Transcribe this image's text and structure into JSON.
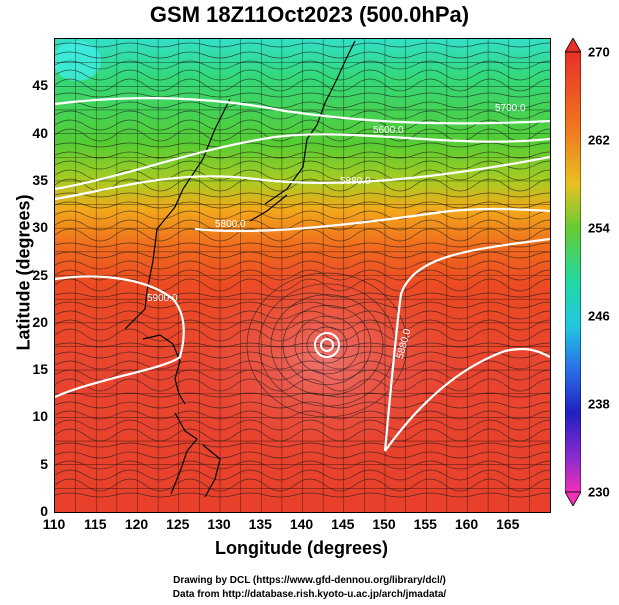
{
  "title": "GSM 18Z11Oct2023 (500.0hPa)",
  "xlabel": "Longitude (degrees)",
  "ylabel": "Latitude (degrees)",
  "x_ticks": [
    "110",
    "115",
    "120",
    "125",
    "130",
    "135",
    "140",
    "145",
    "150",
    "155",
    "160",
    "165"
  ],
  "y_ticks": [
    "0",
    "5",
    "10",
    "15",
    "20",
    "25",
    "30",
    "35",
    "40",
    "45"
  ],
  "colorbar_ticks": [
    "270",
    "262",
    "254",
    "246",
    "238",
    "230"
  ],
  "contour_labels": [
    "5700.0",
    "5600.0",
    "5800.0",
    "5900.0",
    "5880.0",
    "5880.0"
  ],
  "credit_line1": "Drawing by DCL (https://www.gfd-dennou.org/library/dcl/)",
  "credit_line2": "Data from http://database.rish.kyoto-u.ac.jp/arch/jmadata/",
  "chart_data": {
    "type": "heatmap",
    "variable": "temperature with streamlines and height contours",
    "xlim": [
      110,
      170
    ],
    "ylim": [
      0,
      50
    ],
    "colorbar_range": [
      230,
      270
    ],
    "colorbar_ticks": [
      270,
      262,
      254,
      246,
      238,
      230
    ],
    "contours": [
      {
        "label": "5600.0",
        "approx_lat_range": [
          42,
          44
        ]
      },
      {
        "label": "5700.0",
        "approx_lat_range": [
          36,
          44
        ]
      },
      {
        "label": "5800.0",
        "approx_lat_range": [
          34,
          38
        ]
      },
      {
        "label": "5880.0",
        "approx_lat_range": [
          14,
          27
        ]
      }
    ],
    "typhoon_center": {
      "lon": 142.5,
      "lat": 19.5
    }
  }
}
